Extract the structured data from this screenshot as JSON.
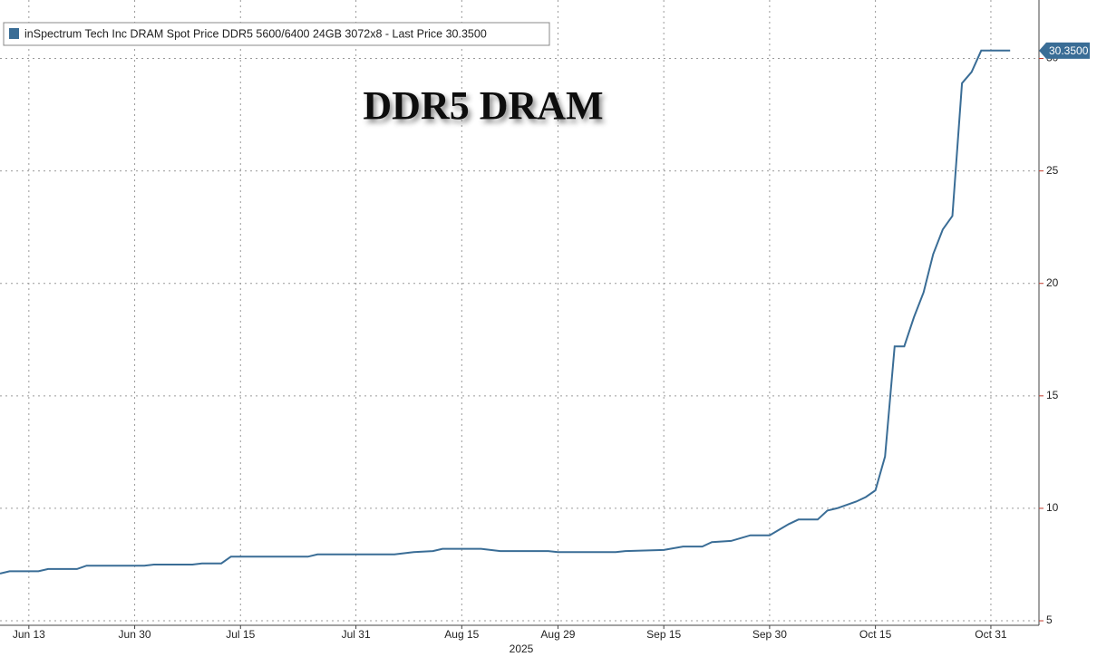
{
  "chart_data": {
    "type": "line",
    "title": "DDR5 DRAM",
    "xlabel": "2025",
    "xlim": [
      "2025-06-10",
      "2025-11-07"
    ],
    "ylim": [
      4.8,
      32.6
    ],
    "yticks": [
      5,
      10,
      15,
      20,
      25,
      30
    ],
    "xticks": [
      {
        "value": "2025-06-13",
        "label": "Jun 13"
      },
      {
        "value": "2025-06-30",
        "label": "Jun 30"
      },
      {
        "value": "2025-07-15",
        "label": "Jul 15"
      },
      {
        "value": "2025-07-31",
        "label": "Jul 31"
      },
      {
        "value": "2025-08-15",
        "label": "Aug 15"
      },
      {
        "value": "2025-08-29",
        "label": "Aug 29"
      },
      {
        "value": "2025-09-15",
        "label": "Sep 15"
      },
      {
        "value": "2025-09-30",
        "label": "Sep 30"
      },
      {
        "value": "2025-10-15",
        "label": "Oct 15"
      },
      {
        "value": "2025-10-31",
        "label": "Oct 31"
      }
    ],
    "grid": true,
    "legend": "top-left",
    "last_price": {
      "value": 30.35,
      "label": "30.3500"
    },
    "x": [
      "2025-06-10",
      "2025-06-11",
      "2025-06-16",
      "2025-06-17",
      "2025-06-20",
      "2025-06-23",
      "2025-07-01",
      "2025-07-02",
      "2025-07-08",
      "2025-07-09",
      "2025-07-11",
      "2025-07-14",
      "2025-07-24",
      "2025-07-25",
      "2025-08-06",
      "2025-08-08",
      "2025-08-12",
      "2025-08-13",
      "2025-08-19",
      "2025-08-21",
      "2025-08-28",
      "2025-08-29",
      "2025-09-08",
      "2025-09-09",
      "2025-09-15",
      "2025-09-17",
      "2025-09-19",
      "2025-09-22",
      "2025-09-24",
      "2025-09-26",
      "2025-09-30",
      "2025-10-02",
      "2025-10-03",
      "2025-10-07",
      "2025-10-08",
      "2025-10-09",
      "2025-10-13",
      "2025-10-14",
      "2025-10-15",
      "2025-10-16",
      "2025-10-17",
      "2025-10-20",
      "2025-10-21",
      "2025-10-22",
      "2025-10-23",
      "2025-10-24",
      "2025-10-27",
      "2025-10-28",
      "2025-10-29",
      "2025-10-30",
      "2025-10-31",
      "2025-11-03",
      "2025-11-04"
    ],
    "series": [
      {
        "name": "inSpectrum Tech Inc DRAM Spot Price DDR5 5600/6400 24GB 3072x8 - Last Price 30.3500",
        "color": "#3a6d96",
        "values": [
          7.1,
          7.2,
          7.2,
          7.3,
          7.3,
          7.45,
          7.45,
          7.5,
          7.5,
          7.55,
          7.55,
          7.85,
          7.85,
          7.95,
          7.95,
          8.05,
          8.1,
          8.2,
          8.2,
          8.1,
          8.1,
          8.05,
          8.05,
          8.1,
          8.15,
          8.3,
          8.3,
          8.5,
          8.55,
          8.8,
          8.8,
          9.3,
          9.5,
          9.5,
          9.9,
          10.0,
          10.3,
          10.5,
          10.8,
          12.3,
          17.2,
          17.2,
          18.5,
          19.6,
          21.3,
          22.4,
          23.0,
          28.9,
          29.4,
          30.35,
          30.35,
          30.35,
          30.35
        ]
      }
    ]
  }
}
